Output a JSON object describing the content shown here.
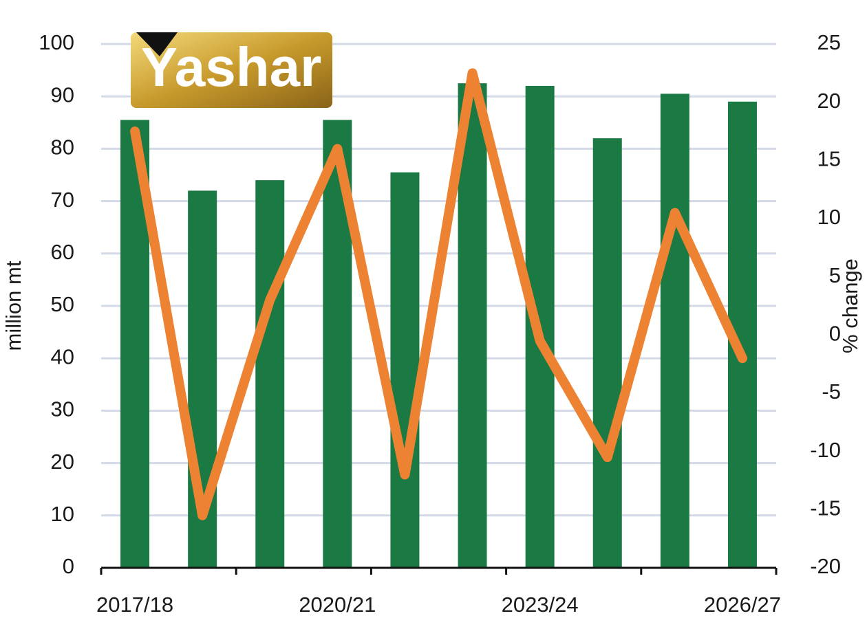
{
  "logo": "Yashar",
  "chart_data": {
    "type": "bar",
    "categories": [
      "2017/18",
      null,
      null,
      "2020/21",
      null,
      null,
      "2023/24",
      null,
      null,
      "2026/27"
    ],
    "series": [
      {
        "type": "bar",
        "color": "#1b7a43",
        "values": [
          85.5,
          72,
          74,
          85.5,
          75.5,
          92.5,
          92,
          82,
          90.5,
          89
        ]
      },
      {
        "type": "line",
        "axis": "y2",
        "color": "#ee8233",
        "values": [
          17.5,
          -15.5,
          3,
          16,
          -12,
          22.5,
          -0.5,
          -10.5,
          10.5,
          -2
        ]
      }
    ],
    "ylabel": "million mt",
    "y2label": "% change",
    "ylim": [
      0,
      100
    ],
    "yticks": [
      0,
      10,
      20,
      30,
      40,
      50,
      60,
      70,
      80,
      90,
      100
    ],
    "y2lim": [
      -20,
      25
    ],
    "y2ticks": [
      -20,
      -15,
      -10,
      -5,
      0,
      5,
      10,
      15,
      20,
      25
    ],
    "grid": true
  }
}
